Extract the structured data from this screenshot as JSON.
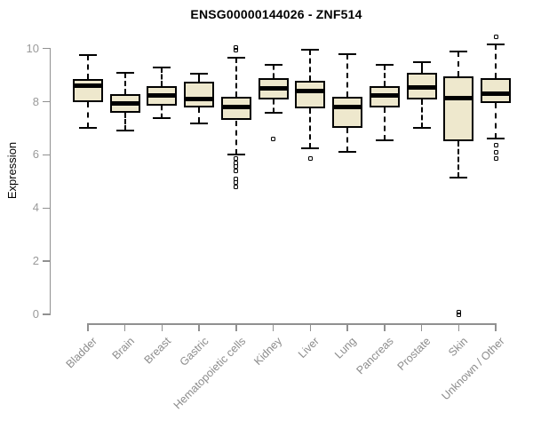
{
  "chart_data": {
    "type": "boxplot",
    "title": "ENSG00000144026 - ZNF514",
    "ylabel": "Expression",
    "xlabel": "",
    "ylim": [
      0,
      10
    ],
    "yticks": [
      0,
      2,
      4,
      6,
      8,
      10
    ],
    "grid": false,
    "legend": "none",
    "categories": [
      "Bladder",
      "Brain",
      "Breast",
      "Gastric",
      "Hematopoietic cells",
      "Kidney",
      "Liver",
      "Lung",
      "Pancreas",
      "Prostate",
      "Skin",
      "Unknown / Other"
    ],
    "boxes": [
      {
        "category": "Bladder",
        "low": 7.0,
        "q1": 8.0,
        "median": 8.6,
        "q3": 8.85,
        "high": 9.75,
        "outliers": []
      },
      {
        "category": "Brain",
        "low": 6.9,
        "q1": 7.6,
        "median": 7.95,
        "q3": 8.3,
        "high": 9.1,
        "outliers": []
      },
      {
        "category": "Breast",
        "low": 7.4,
        "q1": 7.85,
        "median": 8.25,
        "q3": 8.6,
        "high": 9.3,
        "outliers": []
      },
      {
        "category": "Gastric",
        "low": 7.2,
        "q1": 7.8,
        "median": 8.1,
        "q3": 8.75,
        "high": 9.05,
        "outliers": []
      },
      {
        "category": "Hematopoietic cells",
        "low": 6.0,
        "q1": 7.3,
        "median": 7.8,
        "q3": 8.2,
        "high": 9.65,
        "outliers": [
          10.05,
          9.95,
          5.85,
          5.7,
          5.55,
          5.4,
          5.1,
          4.95,
          4.8
        ]
      },
      {
        "category": "Kidney",
        "low": 7.6,
        "q1": 8.1,
        "median": 8.5,
        "q3": 8.9,
        "high": 9.4,
        "outliers": [
          6.6
        ]
      },
      {
        "category": "Liver",
        "low": 6.25,
        "q1": 7.75,
        "median": 8.4,
        "q3": 8.8,
        "high": 9.95,
        "outliers": [
          5.85
        ]
      },
      {
        "category": "Lung",
        "low": 6.1,
        "q1": 7.0,
        "median": 7.8,
        "q3": 8.2,
        "high": 9.8,
        "outliers": []
      },
      {
        "category": "Pancreas",
        "low": 6.55,
        "q1": 7.8,
        "median": 8.25,
        "q3": 8.6,
        "high": 9.4,
        "outliers": []
      },
      {
        "category": "Prostate",
        "low": 7.0,
        "q1": 8.1,
        "median": 8.55,
        "q3": 9.1,
        "high": 9.5,
        "outliers": []
      },
      {
        "category": "Skin",
        "low": 5.15,
        "q1": 6.5,
        "median": 8.15,
        "q3": 8.95,
        "high": 9.9,
        "outliers": [
          0.07,
          0.0
        ]
      },
      {
        "category": "Unknown / Other",
        "low": 6.6,
        "q1": 7.95,
        "median": 8.3,
        "q3": 8.9,
        "high": 10.15,
        "outliers": [
          10.45,
          6.35,
          6.1,
          5.85
        ]
      }
    ],
    "colors": {
      "box_fill": "#EEE8CD",
      "box_stroke": "#000000",
      "axis": "#909090",
      "y_tick_label": "#9a9a9a",
      "x_tick_label": "#8c8c8c",
      "title": "#000000"
    }
  }
}
